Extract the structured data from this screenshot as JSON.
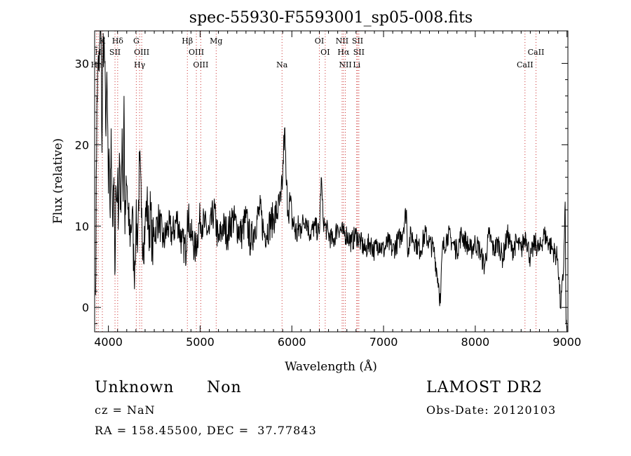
{
  "chart_data": {
    "type": "line",
    "title": "spec-55930-F5593001_sp05-008.fits",
    "xlabel": "Wavelength (Å)",
    "ylabel": "Flux (relative)",
    "xlim": [
      3850,
      9010
    ],
    "ylim": [
      -3,
      34
    ],
    "xticks": [
      4000,
      5000,
      6000,
      7000,
      8000,
      9000
    ],
    "yticks": [
      0,
      10,
      20,
      30
    ],
    "grid": false,
    "series": [
      {
        "x": [
          3860,
          3875,
          3890,
          3900,
          3910,
          3920,
          3930,
          3940,
          3950,
          3960,
          3970,
          3980,
          3990,
          4000,
          4010,
          4020,
          4030,
          4040,
          4050,
          4060,
          4070,
          4080,
          4090,
          4100,
          4110,
          4120,
          4130,
          4140,
          4150,
          4160,
          4170,
          4180,
          4190,
          4200,
          4220,
          4240,
          4260,
          4280,
          4300,
          4320,
          4340,
          4360,
          4380,
          4400,
          4420,
          4440,
          4460,
          4480,
          4500,
          4550,
          4600,
          4650,
          4700,
          4750,
          4800,
          4850,
          4861,
          4900,
          4950,
          5000,
          5050,
          5100,
          5150,
          5200,
          5250,
          5300,
          5350,
          5400,
          5450,
          5500,
          5550,
          5600,
          5650,
          5700,
          5750,
          5800,
          5850,
          5880,
          5900,
          5920,
          5940,
          5960,
          5980,
          6000,
          6050,
          6100,
          6150,
          6200,
          6250,
          6300,
          6320,
          6340,
          6360,
          6400,
          6450,
          6500,
          6563,
          6600,
          6650,
          6700,
          6750,
          6800,
          6850,
          6900,
          6950,
          7000,
          7050,
          7100,
          7150,
          7200,
          7250,
          7260,
          7300,
          7350,
          7400,
          7450,
          7500,
          7550,
          7600,
          7620,
          7640,
          7700,
          7750,
          7800,
          7850,
          7900,
          7950,
          8000,
          8050,
          8100,
          8150,
          8200,
          8250,
          8300,
          8350,
          8400,
          8450,
          8500,
          8550,
          8600,
          8650,
          8700,
          8750,
          8800,
          8850,
          8900,
          8930,
          8960,
          8980,
          8990,
          9000
        ],
        "y": [
          1.5,
          26,
          31,
          29,
          34,
          33,
          19,
          32,
          33,
          30,
          22,
          27,
          24,
          14,
          18,
          11,
          22,
          14,
          10,
          16,
          4,
          15,
          13,
          16,
          11,
          19,
          12,
          15,
          22,
          13,
          26,
          9,
          13,
          15,
          10,
          9,
          12,
          4,
          10,
          9,
          18,
          11,
          8,
          10,
          13,
          9,
          12,
          7,
          9,
          11,
          8,
          10,
          9,
          11,
          8,
          7,
          12,
          9,
          7,
          11,
          10,
          9,
          12,
          8,
          10,
          9,
          11,
          10,
          9,
          11,
          8,
          10,
          12,
          9,
          10,
          11,
          12,
          13,
          16,
          22,
          15,
          12,
          13,
          11,
          9,
          10,
          11,
          9,
          10,
          9,
          16,
          11,
          10,
          9,
          8,
          10,
          9,
          9,
          8,
          9,
          8,
          7,
          8,
          7,
          8,
          7,
          8,
          7,
          8,
          9,
          12,
          7,
          9,
          8,
          7,
          9,
          8,
          7,
          3,
          0.5,
          7,
          9,
          8,
          7,
          9,
          8,
          7,
          8,
          7,
          5,
          9,
          7,
          8,
          6,
          9,
          7,
          8,
          7,
          9,
          6,
          8,
          7,
          9,
          8,
          7,
          6,
          0,
          4,
          13,
          -2,
          -3
        ]
      }
    ],
    "line_groups": [
      {
        "row": 1,
        "lines": [
          {
            "x": 3934,
            "label": "K"
          },
          {
            "x": 4101,
            "label": "Hδ"
          },
          {
            "x": 4304,
            "label": "G"
          },
          {
            "x": 4861,
            "label": "Hβ"
          },
          {
            "x": 5175,
            "label": "Mg"
          },
          {
            "x": 6300,
            "label": "OI"
          },
          {
            "x": 6548,
            "label": "NII"
          },
          {
            "x": 6717,
            "label": "SII"
          }
        ]
      },
      {
        "row": 2,
        "lines": [
          {
            "x": 3889,
            "label": "H"
          },
          {
            "x": 4072,
            "label": "SII"
          },
          {
            "x": 4363,
            "label": "OIII"
          },
          {
            "x": 4959,
            "label": "OIII"
          },
          {
            "x": 6364,
            "label": "OI"
          },
          {
            "x": 6563,
            "label": "Hα"
          },
          {
            "x": 6731,
            "label": "SII"
          },
          {
            "x": 8662,
            "label": "CaII"
          }
        ]
      },
      {
        "row": 3,
        "lines": [
          {
            "x": 3870,
            "label": "He"
          },
          {
            "x": 4340,
            "label": "Hγ"
          },
          {
            "x": 5007,
            "label": "OIII"
          },
          {
            "x": 5893,
            "label": "Na"
          },
          {
            "x": 6583,
            "label": "NII"
          },
          {
            "x": 6707,
            "label": "Li"
          },
          {
            "x": 8542,
            "label": "CaII"
          }
        ]
      }
    ]
  },
  "info": {
    "class": "Unknown",
    "subclass": "Non",
    "survey": "LAMOST DR2",
    "cz": "cz = NaN",
    "obs_date": "Obs-Date: 20120103",
    "coords": "RA = 158.45500, DEC =  37.77843"
  }
}
